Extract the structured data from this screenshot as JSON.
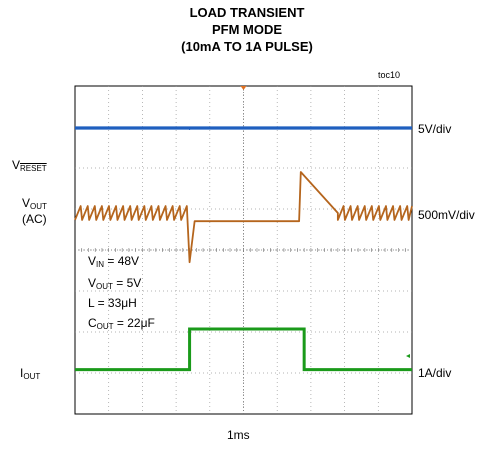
{
  "title_lines": [
    "LOAD TRANSIENT",
    "PFM MODE",
    "(10mA TO 1A PULSE)"
  ],
  "toc": "toc10",
  "x_scale": "1ms",
  "left_labels": {
    "reset": {
      "main": "V",
      "sub": "RESET"
    },
    "vout": {
      "main": "V",
      "sub": "OUT",
      "line2": "(AC)"
    },
    "iout": {
      "main": "I",
      "sub": "OUT"
    }
  },
  "right_labels": [
    "5V/div",
    "500mV/div",
    "1A/div"
  ],
  "conditions": [
    {
      "main": "V",
      "sub": "IN",
      "rest": " = 48V"
    },
    {
      "main": "V",
      "sub": "OUT",
      "rest": " = 5V"
    },
    {
      "main": "L = 33μH",
      "sub": "",
      "rest": ""
    },
    {
      "main": "C",
      "sub": "OUT",
      "rest": " = 22μF"
    }
  ],
  "chart_data": {
    "type": "line",
    "title": "LOAD TRANSIENT PFM MODE (10mA TO 1A PULSE)",
    "xlabel": "1ms",
    "x_divisions": 10,
    "y_divisions": 8,
    "grid": true,
    "series": [
      {
        "name": "VRESET",
        "color": "#1f5fbf",
        "scale": "5V/div",
        "description": "flat high level",
        "points": [
          [
            0,
            5
          ],
          [
            10,
            5
          ]
        ]
      },
      {
        "name": "VOUT (AC)",
        "color": "#b5651d",
        "scale": "500mV/div",
        "x": [
          0,
          3.35,
          3.4,
          3.6,
          6.6,
          6.7,
          7.8,
          10
        ],
        "y": [
          0,
          0,
          -0.6,
          -0.1,
          -0.1,
          0.5,
          0,
          0
        ]
      },
      {
        "name": "IOUT",
        "color": "#1a9a1a",
        "scale": "1A/div",
        "x": [
          0,
          3.4,
          3.4,
          6.8,
          6.8,
          10
        ],
        "y": [
          0.01,
          0.01,
          1,
          1,
          0.01,
          0.01
        ]
      }
    ]
  }
}
